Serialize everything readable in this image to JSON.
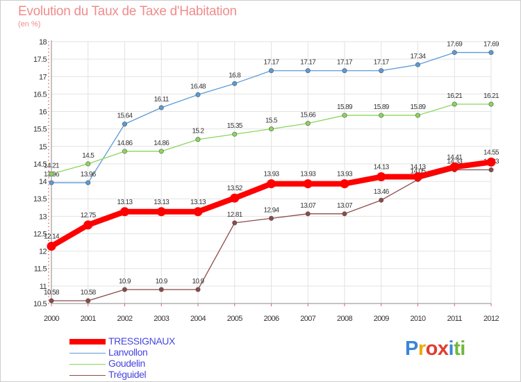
{
  "title": "Evolution du Taux de Taxe d'Habitation",
  "unit": "(en %)",
  "logo": {
    "text": "Proxiti",
    "colors": [
      "#3a86d6",
      "#f0a800",
      "#e23b2e",
      "#e23b2e",
      "#3a86d6",
      "#6fb83a",
      "#6fb83a"
    ]
  },
  "chart_data": {
    "type": "line",
    "title": "Evolution du Taux de Taxe d'Habitation",
    "ylabel": "(en %)",
    "xlabel": "",
    "ylim": [
      10.5,
      18
    ],
    "yticks": [
      "10.5",
      "11",
      "11.5",
      "12",
      "12.5",
      "13",
      "13.5",
      "14",
      "14.5",
      "15",
      "15.5",
      "16",
      "16.5",
      "17",
      "17.5",
      "18"
    ],
    "categories": [
      "2000",
      "2001",
      "2002",
      "2003",
      "2004",
      "2005",
      "2006",
      "2007",
      "2008",
      "2009",
      "2010",
      "2011",
      "2012"
    ],
    "grid": true,
    "legend": "bottom-left",
    "series": [
      {
        "name": "TRESSIGNAUX",
        "color": "#ff0000",
        "highlight": true,
        "values": [
          12.14,
          12.75,
          13.13,
          13.13,
          13.13,
          13.52,
          13.93,
          13.93,
          13.93,
          14.13,
          14.13,
          14.41,
          14.55
        ],
        "labels": [
          "12.14",
          "12.75",
          "13.13",
          "13.13",
          "13.13",
          "13.52",
          "13.93",
          "13.93",
          "13.93",
          "14.13",
          "14.13",
          "14.41",
          "14.55"
        ]
      },
      {
        "name": "Lanvollon",
        "color": "#5b9bd5",
        "values": [
          13.96,
          13.96,
          15.64,
          16.11,
          16.48,
          16.8,
          17.17,
          17.17,
          17.17,
          17.17,
          17.34,
          17.69,
          17.69
        ],
        "labels": [
          "13.96",
          "13.96",
          "15.64",
          "16.11",
          "16.48",
          "16.8",
          "17.17",
          "17.17",
          "17.17",
          "17.17",
          "17.34",
          "17.69",
          "17.69"
        ]
      },
      {
        "name": "Goudelin",
        "color": "#8ad65a",
        "values": [
          14.21,
          14.5,
          14.86,
          14.86,
          15.2,
          15.35,
          15.5,
          15.66,
          15.89,
          15.89,
          15.89,
          16.21,
          16.21
        ],
        "labels": [
          "14.21",
          "14.5",
          "14.86",
          "14.86",
          "15.2",
          "15.35",
          "15.5",
          "15.66",
          "15.89",
          "15.89",
          "15.89",
          "16.21",
          "16.21"
        ]
      },
      {
        "name": "Tréguidel",
        "color": "#8b4a4a",
        "values": [
          10.58,
          10.58,
          10.9,
          10.9,
          10.9,
          12.81,
          12.94,
          13.07,
          13.07,
          13.46,
          14.05,
          14.33,
          14.33
        ],
        "labels": [
          "10.58",
          "10.58",
          "10.9",
          "10.9",
          "10.9",
          "12.81",
          "12.94",
          "13.07",
          "13.07",
          "13.46",
          "14.05",
          "14.33",
          "14.33"
        ]
      }
    ]
  }
}
